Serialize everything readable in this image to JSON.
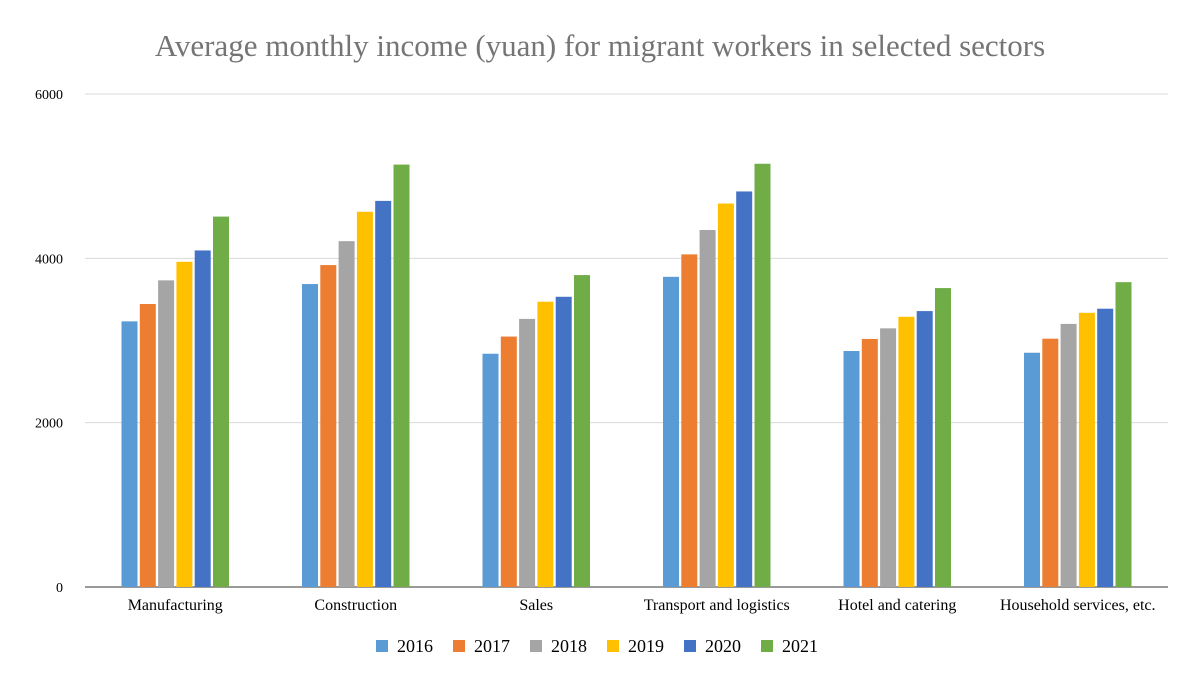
{
  "chart_data": {
    "type": "bar",
    "title": "Average monthly income (yuan) for migrant workers in selected sectors",
    "xlabel": "",
    "ylabel": "",
    "categories": [
      "Manufacturing",
      "Construction",
      "Sales",
      "Transport and logistics",
      "Hotel and catering",
      "Household services, etc."
    ],
    "ylim": [
      0,
      6000
    ],
    "yticks": [
      0,
      2000,
      4000,
      6000
    ],
    "grid": true,
    "legend_position": "bottom",
    "series": [
      {
        "name": "2016",
        "color": "#5b9bd5",
        "values": [
          3233,
          3687,
          2839,
          3775,
          2872,
          2851
        ]
      },
      {
        "name": "2017",
        "color": "#ed7d31",
        "values": [
          3444,
          3918,
          3048,
          4048,
          3019,
          3022
        ]
      },
      {
        "name": "2018",
        "color": "#a5a5a5",
        "values": [
          3732,
          4209,
          3263,
          4345,
          3148,
          3202
        ]
      },
      {
        "name": "2019",
        "color": "#ffc000",
        "values": [
          3958,
          4567,
          3472,
          4667,
          3289,
          3337
        ]
      },
      {
        "name": "2020",
        "color": "#4472c4",
        "values": [
          4096,
          4699,
          3532,
          4814,
          3358,
          3387
        ]
      },
      {
        "name": "2021",
        "color": "#70ad47",
        "values": [
          4508,
          5141,
          3796,
          5151,
          3638,
          3710
        ]
      }
    ]
  }
}
